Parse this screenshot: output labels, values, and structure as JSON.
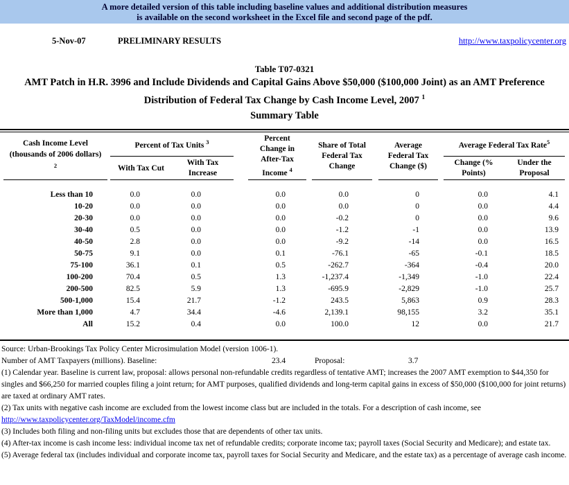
{
  "banner": {
    "line1": "A more detailed version of this table including baseline values and additional distribution measures",
    "line2": "is available on the second worksheet in the Excel file and second page of the pdf.",
    "bg_color": "#a9c8ed",
    "text_color": "#000030"
  },
  "meta": {
    "date": "5-Nov-07",
    "status": "PRELIMINARY RESULTS",
    "url": "http://www.taxpolicycenter.org",
    "link_color": "#0000ee"
  },
  "title": {
    "line1": "Table T07-0321",
    "line2": "AMT Patch in H.R. 3996 and Include Dividends and Capital Gains Above $50,000 ($100,000 Joint) as an AMT Preference",
    "line3": "Distribution of Federal Tax Change by Cash Income Level, 2007",
    "line3_sup": "1",
    "line4": "Summary Table"
  },
  "table": {
    "col1_header": {
      "line1": "Cash Income Level",
      "line2": "(thousands of 2006 dollars)",
      "sup": "2"
    },
    "group1": {
      "label": "Percent of Tax Units",
      "sup": "3"
    },
    "col2_header": "With Tax Cut",
    "col3_header": {
      "line1": "With Tax",
      "line2": "Increase"
    },
    "col4_header": {
      "line1": "Percent",
      "line2": "Change in",
      "line3": "After-Tax",
      "line4": "Income",
      "sup": "4"
    },
    "col5_header": {
      "line1": "Share of Total",
      "line2": "Federal Tax",
      "line3": "Change"
    },
    "col6_header": {
      "line1": "Average",
      "line2": "Federal Tax",
      "line3": "Change ($)"
    },
    "group2": {
      "label": "Average Federal Tax Rate",
      "sup": "5"
    },
    "col7_header": {
      "line1": "Change (%",
      "line2": "Points)"
    },
    "col8_header": {
      "line1": "Under the",
      "line2": "Proposal"
    },
    "rows": [
      {
        "label": "Less than 10",
        "values": [
          "0.0",
          "0.0",
          "0.0",
          "0.0",
          "0",
          "0.0",
          "4.1"
        ]
      },
      {
        "label": "10-20",
        "values": [
          "0.0",
          "0.0",
          "0.0",
          "0.0",
          "0",
          "0.0",
          "4.4"
        ]
      },
      {
        "label": "20-30",
        "values": [
          "0.0",
          "0.0",
          "0.0",
          "-0.2",
          "0",
          "0.0",
          "9.6"
        ]
      },
      {
        "label": "30-40",
        "values": [
          "0.5",
          "0.0",
          "0.0",
          "-1.2",
          "-1",
          "0.0",
          "13.9"
        ]
      },
      {
        "label": "40-50",
        "values": [
          "2.8",
          "0.0",
          "0.0",
          "-9.2",
          "-14",
          "0.0",
          "16.5"
        ]
      },
      {
        "label": "50-75",
        "values": [
          "9.1",
          "0.0",
          "0.1",
          "-76.1",
          "-65",
          "-0.1",
          "18.5"
        ]
      },
      {
        "label": "75-100",
        "values": [
          "36.1",
          "0.1",
          "0.5",
          "-262.7",
          "-364",
          "-0.4",
          "20.0"
        ]
      },
      {
        "label": "100-200",
        "values": [
          "70.4",
          "0.5",
          "1.3",
          "-1,237.4",
          "-1,349",
          "-1.0",
          "22.4"
        ]
      },
      {
        "label": "200-500",
        "values": [
          "82.5",
          "5.9",
          "1.3",
          "-695.9",
          "-2,829",
          "-1.0",
          "25.7"
        ]
      },
      {
        "label": "500-1,000",
        "values": [
          "15.4",
          "21.7",
          "-1.2",
          "243.5",
          "5,863",
          "0.9",
          "28.3"
        ]
      },
      {
        "label": "More than 1,000",
        "values": [
          "4.7",
          "34.4",
          "-4.6",
          "2,139.1",
          "98,155",
          "3.2",
          "35.1"
        ]
      },
      {
        "label": "All",
        "values": [
          "15.2",
          "0.4",
          "0.0",
          "100.0",
          "12",
          "0.0",
          "21.7"
        ]
      }
    ]
  },
  "footer": {
    "source": "Source: Urban-Brookings Tax Policy Center Microsimulation Model (version 1006-1).",
    "amt_line": {
      "label": "Number of AMT Taxpayers (millions).  Baseline:",
      "baseline_value": "23.4",
      "proposal_label": "Proposal:",
      "proposal_value": "3.7"
    },
    "note1": "(1) Calendar year. Baseline is current law, proposal: allows personal non-refundable credits regardless of tentative AMT; increases the 2007 AMT exemption to $44,350 for singles and $66,250 for married couples filing a joint return; for AMT purposes, qualified dividends and long-term capital gains in excess of $50,000 ($100,000 for joint returns) are taxed at ordinary AMT rates.",
    "note2": "(2) Tax units with negative cash income are excluded from the lowest income class but are included in the totals. For a description of cash income, see",
    "income_link": "http://www.taxpolicycenter.org/TaxModel/income.cfm",
    "note3": "(3) Includes both filing and non-filing units but excludes those that are dependents of other tax units.",
    "note4": "(4) After-tax income is cash income less: individual income tax net of refundable credits; corporate income tax; payroll taxes (Social Security and Medicare); and estate tax.",
    "note5": "(5) Average federal tax (includes individual and corporate income tax, payroll taxes for Social Security and Medicare, and the estate tax) as a percentage of average cash income."
  }
}
